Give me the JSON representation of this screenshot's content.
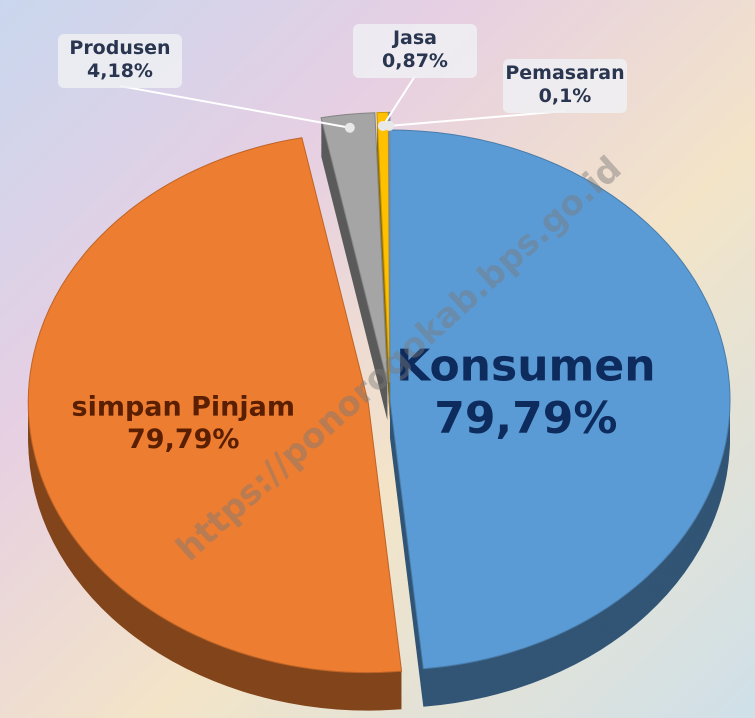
{
  "chart_data": {
    "type": "pie",
    "categories": [
      "Konsumen",
      "simpan Pinjam",
      "Produsen",
      "Jasa",
      "Pemasaran"
    ],
    "values": [
      79.79,
      79.79,
      4.18,
      0.87,
      0.1
    ],
    "value_labels": [
      "79,79%",
      "79,79%",
      "4,18%",
      "0,87%",
      "0,1%"
    ],
    "colors": [
      "#5b9bd5",
      "#ed7d31",
      "#a5a5a5",
      "#ffc000",
      "#8fa8c8"
    ],
    "watermark": "https://ponorogokab.bps.go.id"
  }
}
